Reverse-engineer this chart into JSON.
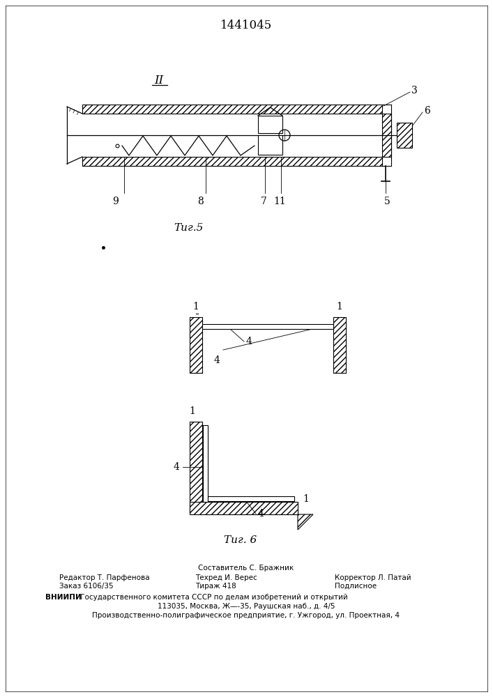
{
  "title": "1441045",
  "fig5_label": "Τиг.5",
  "fig6_label": "Τиг. 6",
  "roman_II": "II",
  "bg_color": "#ffffff",
  "line_color": "#000000",
  "footer_sestavitel": "Составитель С. Бражник",
  "footer_redaktor": "Редактор Т. Парфенова",
  "footer_zakaz": "Заказ 6106/35",
  "footer_tehred": "Техред И. Верес",
  "footer_tirazh": "Тираж 418",
  "footer_korrektor": "Корректор Л. Патай",
  "footer_podpisnoe": "Подлисное",
  "footer_vniiipi": "ВНИИПИ",
  "footer_vniiipi_rest": " Государственного комитета СССР по делам изобретений и открытий",
  "footer_addr1": "113035, Москва, Ж—-35, Раушская наб., д. 4/5",
  "footer_addr2": "Производственно-полиграфическое предприятие, г. Ужгород, ул. Проектная, 4"
}
